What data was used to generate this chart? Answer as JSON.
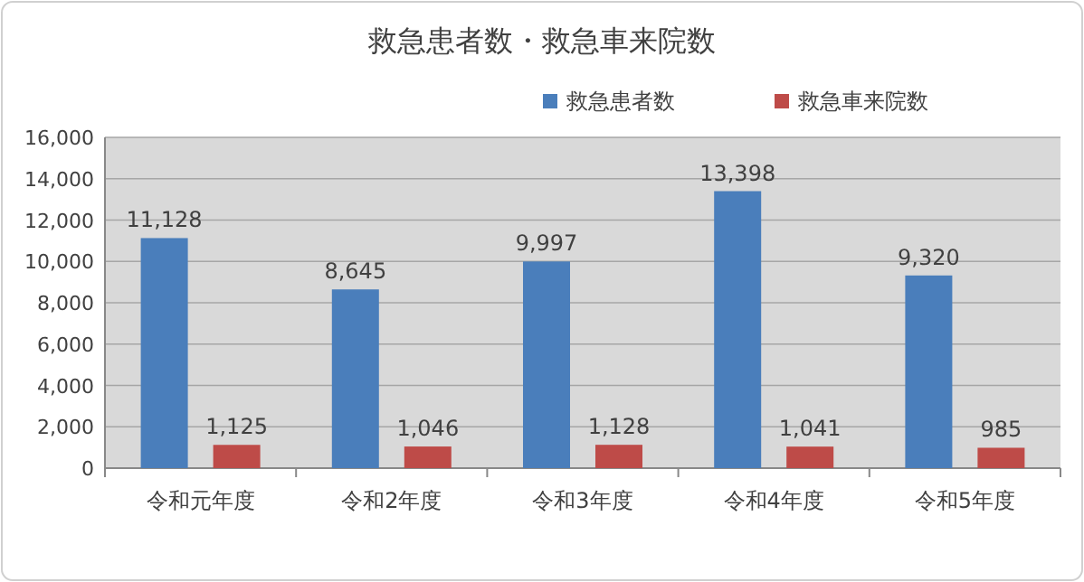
{
  "chart_data": {
    "type": "bar",
    "title": "救急患者数・救急車来院数",
    "categories": [
      "令和元年度",
      "令和2年度",
      "令和3年度",
      "令和4年度",
      "令和5年度"
    ],
    "series": [
      {
        "name": "救急患者数",
        "color": "#4a7ebb",
        "values": [
          11128,
          8645,
          9997,
          13398,
          9320
        ],
        "value_labels": [
          "11,128",
          "8,645",
          "9,997",
          "13,398",
          "9,320"
        ]
      },
      {
        "name": "救急車来院数",
        "color": "#be4b48",
        "values": [
          1125,
          1046,
          1128,
          1041,
          985
        ],
        "value_labels": [
          "1,125",
          "1,046",
          "1,128",
          "1,041",
          "985"
        ]
      }
    ],
    "ylim": [
      0,
      16000
    ],
    "yticks": [
      {
        "value": 0,
        "label": "0"
      },
      {
        "value": 2000,
        "label": "2,000"
      },
      {
        "value": 4000,
        "label": "4,000"
      },
      {
        "value": 6000,
        "label": "6,000"
      },
      {
        "value": 8000,
        "label": "8,000"
      },
      {
        "value": 10000,
        "label": "10,000"
      },
      {
        "value": 12000,
        "label": "12,000"
      },
      {
        "value": 14000,
        "label": "14,000"
      },
      {
        "value": 16000,
        "label": "16,000"
      }
    ],
    "grid": "y",
    "legend": "top right"
  }
}
